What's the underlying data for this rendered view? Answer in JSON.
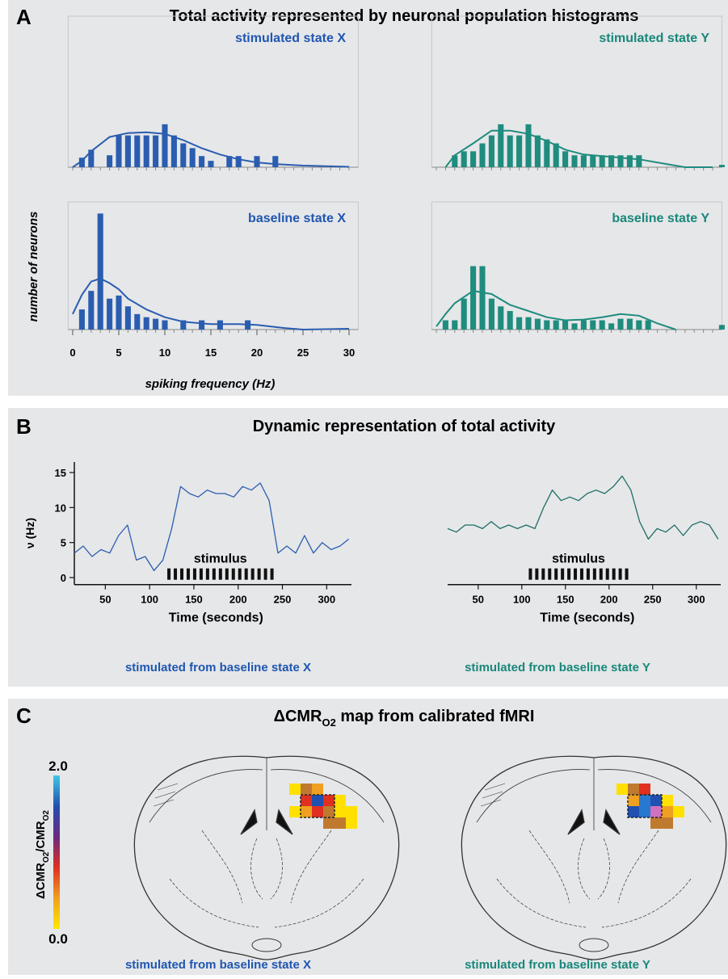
{
  "panels": [
    {
      "letter": "A",
      "title": "Total activity represented by neuronal population histograms"
    },
    {
      "letter": "B",
      "title": "Dynamic representation of total activity"
    },
    {
      "letter": "C",
      "title_parts": [
        "ΔCMR",
        "O2",
        " map from calibrated fMRI"
      ]
    }
  ],
  "panel_a": {
    "ylabel": "number of neurons",
    "xlabel": "spiking frequency (Hz)"
  },
  "panel_b": {
    "ylabel": "ν (Hz)",
    "xlabel": "Time (seconds)"
  },
  "chart_data": [
    {
      "type": "bar",
      "title": "stimulated state X",
      "color": "#2a5db0",
      "xlim": [
        -0.5,
        31
      ],
      "ylim": [
        0,
        19
      ],
      "x": [
        1,
        2,
        4,
        5,
        6,
        7,
        8,
        9,
        10,
        11,
        12,
        13,
        14,
        15,
        17,
        18,
        20,
        22
      ],
      "values": [
        1.2,
        2.2,
        1.5,
        4,
        4,
        4,
        4,
        4,
        5.4,
        4,
        3,
        2.4,
        1.4,
        0.8,
        1.4,
        1.4,
        1.4,
        1.4
      ],
      "fit": {
        "x": [
          0,
          1,
          2,
          4,
          6,
          8,
          10,
          12,
          14,
          16,
          18,
          20,
          22,
          25,
          30
        ],
        "values": [
          0,
          0.8,
          2,
          3.8,
          4.3,
          4.4,
          4.2,
          3.4,
          2.4,
          1.6,
          1,
          0.6,
          0.4,
          0.2,
          0.05
        ]
      },
      "minor_xticks": [
        0,
        1,
        2,
        3,
        4,
        5,
        6,
        7,
        8,
        9,
        10,
        11,
        12,
        13,
        14,
        15,
        16,
        17,
        18,
        19,
        20,
        21,
        22,
        23,
        24,
        25,
        26,
        27,
        28,
        29,
        30
      ]
    },
    {
      "type": "bar",
      "title": "stimulated state Y",
      "color": "#1e8c7e",
      "xlim": [
        -0.5,
        31
      ],
      "ylim": [
        0,
        19
      ],
      "x": [
        2,
        3,
        4,
        5,
        6,
        7,
        8,
        9,
        10,
        11,
        12,
        13,
        14,
        15,
        16,
        17,
        18,
        19,
        20,
        21,
        22,
        31
      ],
      "values": [
        1.5,
        2,
        2,
        3,
        4,
        5.4,
        4,
        4,
        5.4,
        4,
        3.5,
        3,
        2,
        1.5,
        1.5,
        1.5,
        1.5,
        1.5,
        1.5,
        1.5,
        1.5,
        0.3
      ],
      "fit": {
        "x": [
          1,
          2,
          4,
          6,
          8,
          10,
          12,
          14,
          16,
          18,
          20,
          22,
          25,
          27,
          30
        ],
        "values": [
          0,
          1.5,
          3,
          4.6,
          4.6,
          4.2,
          3.3,
          2.2,
          1.6,
          1.4,
          1.2,
          1,
          0.4,
          0,
          0
        ]
      },
      "minor_xticks": [
        0,
        1,
        2,
        3,
        4,
        5,
        6,
        7,
        8,
        9,
        10,
        11,
        12,
        13,
        14,
        15,
        16,
        17,
        18,
        19,
        20,
        21,
        22,
        23,
        24,
        25,
        26,
        27,
        28,
        29,
        30
      ]
    },
    {
      "type": "bar",
      "title": "baseline state X",
      "color": "#2a5db0",
      "xlim": [
        -0.5,
        31
      ],
      "ylim": [
        0,
        16.5
      ],
      "x": [
        1,
        2,
        3,
        4,
        5,
        6,
        7,
        8,
        9,
        10,
        12,
        14,
        16,
        19
      ],
      "values": [
        2.6,
        5,
        15,
        4,
        4.4,
        3,
        2,
        1.6,
        1.4,
        1.2,
        1.2,
        1.2,
        1.2,
        1.2
      ],
      "fit": {
        "x": [
          0,
          1,
          2,
          3,
          4,
          5,
          6,
          8,
          10,
          12,
          15,
          18,
          20,
          23,
          25,
          30
        ],
        "values": [
          2,
          4.5,
          6.2,
          6.6,
          6,
          5.2,
          4,
          2.6,
          1.6,
          1,
          0.7,
          0.7,
          0.6,
          0.2,
          0,
          0.1
        ]
      },
      "xticks": [
        0,
        5,
        10,
        15,
        20,
        25,
        30
      ],
      "minor_xticks": [
        0,
        1,
        2,
        3,
        4,
        5,
        6,
        7,
        8,
        9,
        10,
        11,
        12,
        13,
        14,
        15,
        16,
        17,
        18,
        19,
        20,
        21,
        22,
        23,
        24,
        25,
        26,
        27,
        28,
        29,
        30
      ]
    },
    {
      "type": "bar",
      "title": "baseline state Y",
      "color": "#1e8c7e",
      "xlim": [
        -0.5,
        31
      ],
      "ylim": [
        0,
        16.5
      ],
      "x": [
        1,
        2,
        3,
        4,
        5,
        6,
        7,
        8,
        9,
        10,
        11,
        12,
        13,
        14,
        15,
        16,
        17,
        18,
        19,
        20,
        21,
        22,
        23,
        31
      ],
      "values": [
        1.2,
        1.2,
        4,
        8.2,
        8.2,
        4,
        3,
        2.4,
        1.6,
        1.6,
        1.4,
        1.2,
        1.2,
        1.2,
        0.8,
        1.2,
        1.2,
        1.2,
        0.8,
        1.4,
        1.4,
        1.2,
        1.2,
        0.6
      ],
      "fit": {
        "x": [
          0,
          1,
          2,
          4,
          6,
          8,
          10,
          12,
          14,
          16,
          18,
          20,
          22,
          24,
          26
        ],
        "values": [
          0.4,
          2,
          3.4,
          5,
          4.6,
          3.2,
          2.4,
          1.6,
          1.2,
          1.3,
          1.6,
          2,
          1.8,
          0.8,
          0
        ]
      },
      "minor_xticks": [
        0,
        1,
        2,
        3,
        4,
        5,
        6,
        7,
        8,
        9,
        10,
        11,
        12,
        13,
        14,
        15,
        16,
        17,
        18,
        19,
        20,
        21,
        22,
        23,
        24,
        25,
        26,
        27,
        28,
        29,
        30
      ]
    },
    {
      "type": "line",
      "color": "#2a5db0",
      "caption": "stimulated from baseline state X",
      "xlim": [
        15,
        328
      ],
      "ylim": [
        -1,
        16.5
      ],
      "xticks": [
        50,
        100,
        150,
        200,
        250,
        300
      ],
      "yticks": [
        0,
        5,
        10,
        15
      ],
      "stimulus": {
        "label": "stimulus",
        "range": [
          120,
          240
        ]
      },
      "x": [
        15,
        25,
        35,
        45,
        55,
        65,
        75,
        85,
        95,
        105,
        115,
        125,
        135,
        145,
        155,
        165,
        175,
        185,
        195,
        205,
        215,
        225,
        235,
        245,
        255,
        265,
        275,
        285,
        295,
        305,
        315,
        325
      ],
      "values": [
        3.5,
        4.5,
        3,
        4,
        3.5,
        6,
        7.5,
        2.5,
        3,
        1,
        2.5,
        7,
        13,
        12,
        11.5,
        12.5,
        12,
        12,
        11.5,
        13,
        12.5,
        13.5,
        11,
        3.5,
        4.5,
        3.5,
        6,
        3.5,
        5,
        4,
        4.5,
        5.5
      ]
    },
    {
      "type": "line",
      "color": "#1e6e66",
      "caption": "stimulated from baseline state Y",
      "xlim": [
        15,
        328
      ],
      "ylim": [
        -1,
        16.5
      ],
      "xticks": [
        50,
        100,
        150,
        200,
        250,
        300
      ],
      "stimulus": {
        "label": "stimulus",
        "range": [
          108,
          222
        ]
      },
      "x": [
        15,
        25,
        35,
        45,
        55,
        65,
        75,
        85,
        95,
        105,
        115,
        125,
        135,
        145,
        155,
        165,
        175,
        185,
        195,
        205,
        215,
        225,
        235,
        245,
        255,
        265,
        275,
        285,
        295,
        305,
        315,
        325
      ],
      "values": [
        7,
        6.5,
        7.5,
        7.5,
        7,
        8,
        7,
        7.5,
        7,
        7.5,
        7,
        10,
        12.5,
        11,
        11.5,
        11,
        12,
        12.5,
        12,
        13,
        14.5,
        12.5,
        8,
        5.5,
        7,
        6.5,
        7.5,
        6,
        7.5,
        8,
        7.5,
        5.5
      ]
    }
  ],
  "panel_c": {
    "colorbar": {
      "label_parts": [
        "ΔCMR",
        "O2",
        "/CMR",
        "O2"
      ],
      "clim": [
        0,
        2
      ],
      "ticks": [
        {
          "value": 0,
          "label": "0.0"
        },
        {
          "value": 2,
          "label": "2.0"
        }
      ],
      "colors": [
        "#ffe800",
        "#f0a020",
        "#e03020",
        "#6a2a80",
        "#2050b0",
        "#40c8e8"
      ]
    },
    "captions": [
      "stimulated from baseline state X",
      "stimulated from baseline state Y"
    ]
  }
}
